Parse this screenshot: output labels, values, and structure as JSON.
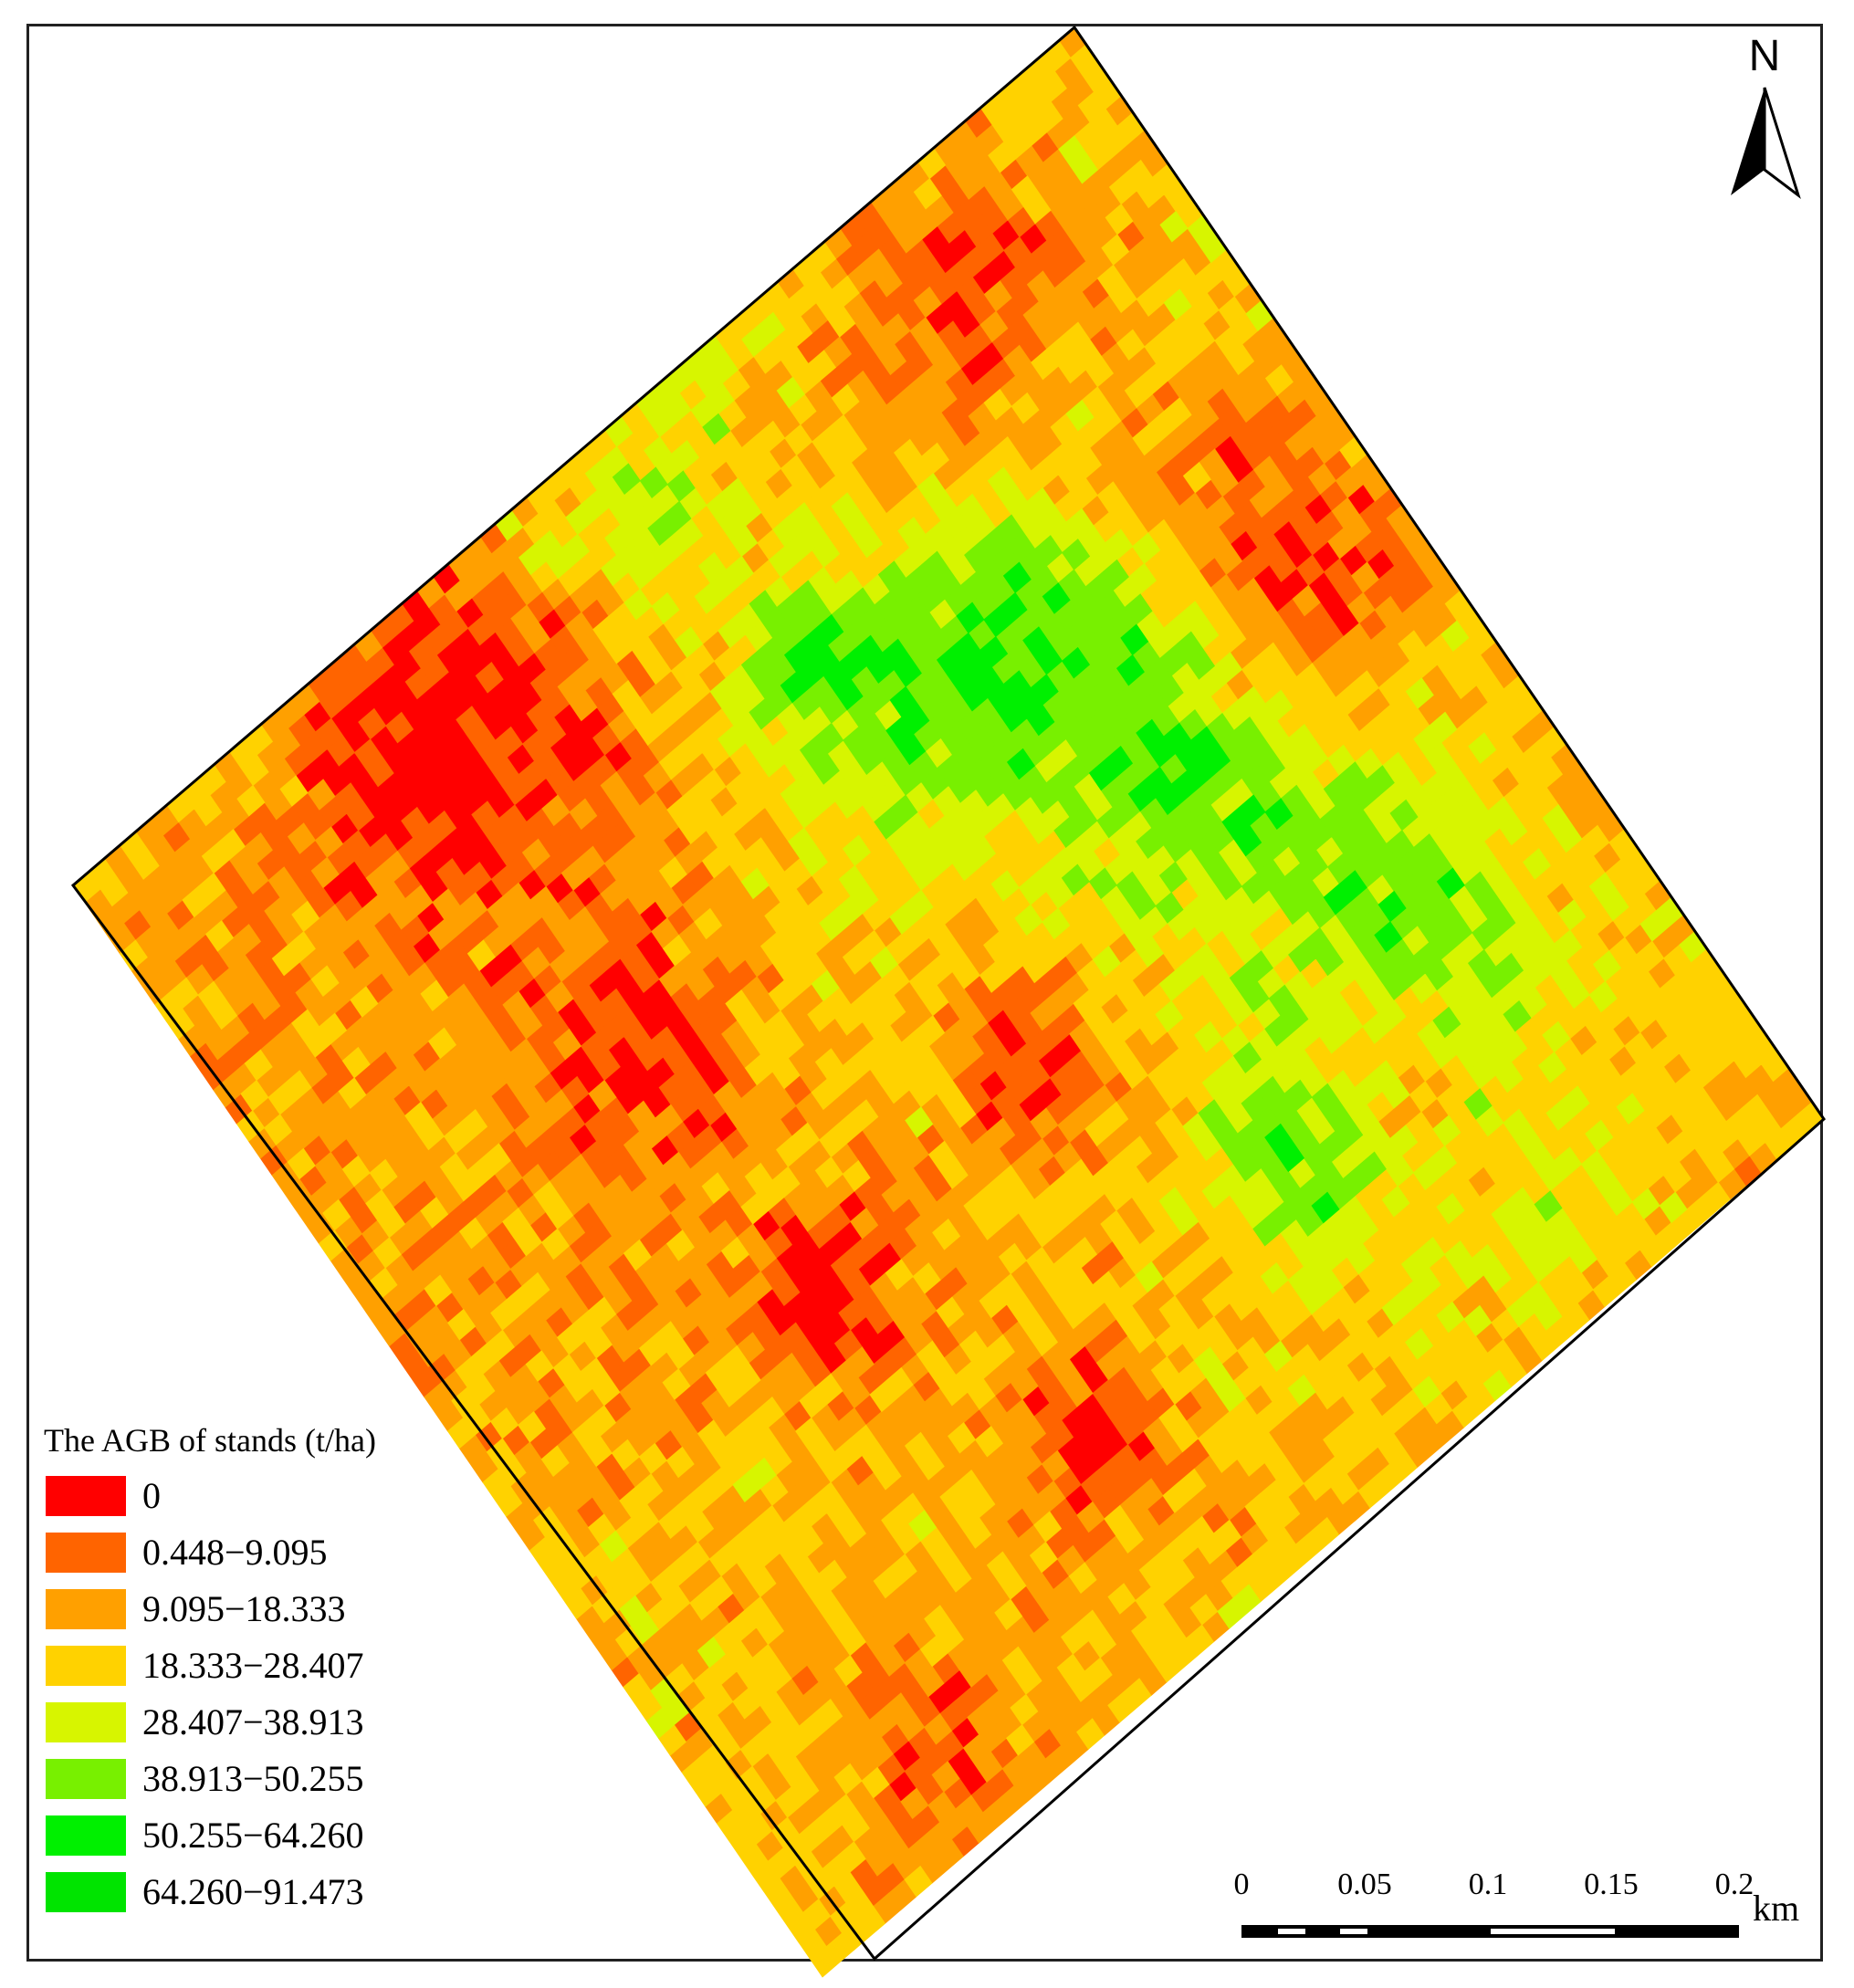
{
  "legend": {
    "title": "The AGB of stands (t/ha)",
    "classes": [
      {
        "label": "0",
        "color": "#ff0000"
      },
      {
        "label": "0.448−9.095",
        "color": "#ff6400"
      },
      {
        "label": "9.095−18.333",
        "color": "#ffa000"
      },
      {
        "label": "18.333−28.407",
        "color": "#ffd200"
      },
      {
        "label": "28.407−38.913",
        "color": "#d7f500"
      },
      {
        "label": "38.913−50.255",
        "color": "#78f000"
      },
      {
        "label": "50.255−64.260",
        "color": "#00f000"
      },
      {
        "label": "64.260−91.473",
        "color": "#00e400"
      }
    ]
  },
  "north_arrow": {
    "label": "N"
  },
  "scale_bar": {
    "ticks": [
      "0",
      "0.05",
      "0.1",
      "0.15",
      "0.2"
    ],
    "unit": "km"
  }
}
